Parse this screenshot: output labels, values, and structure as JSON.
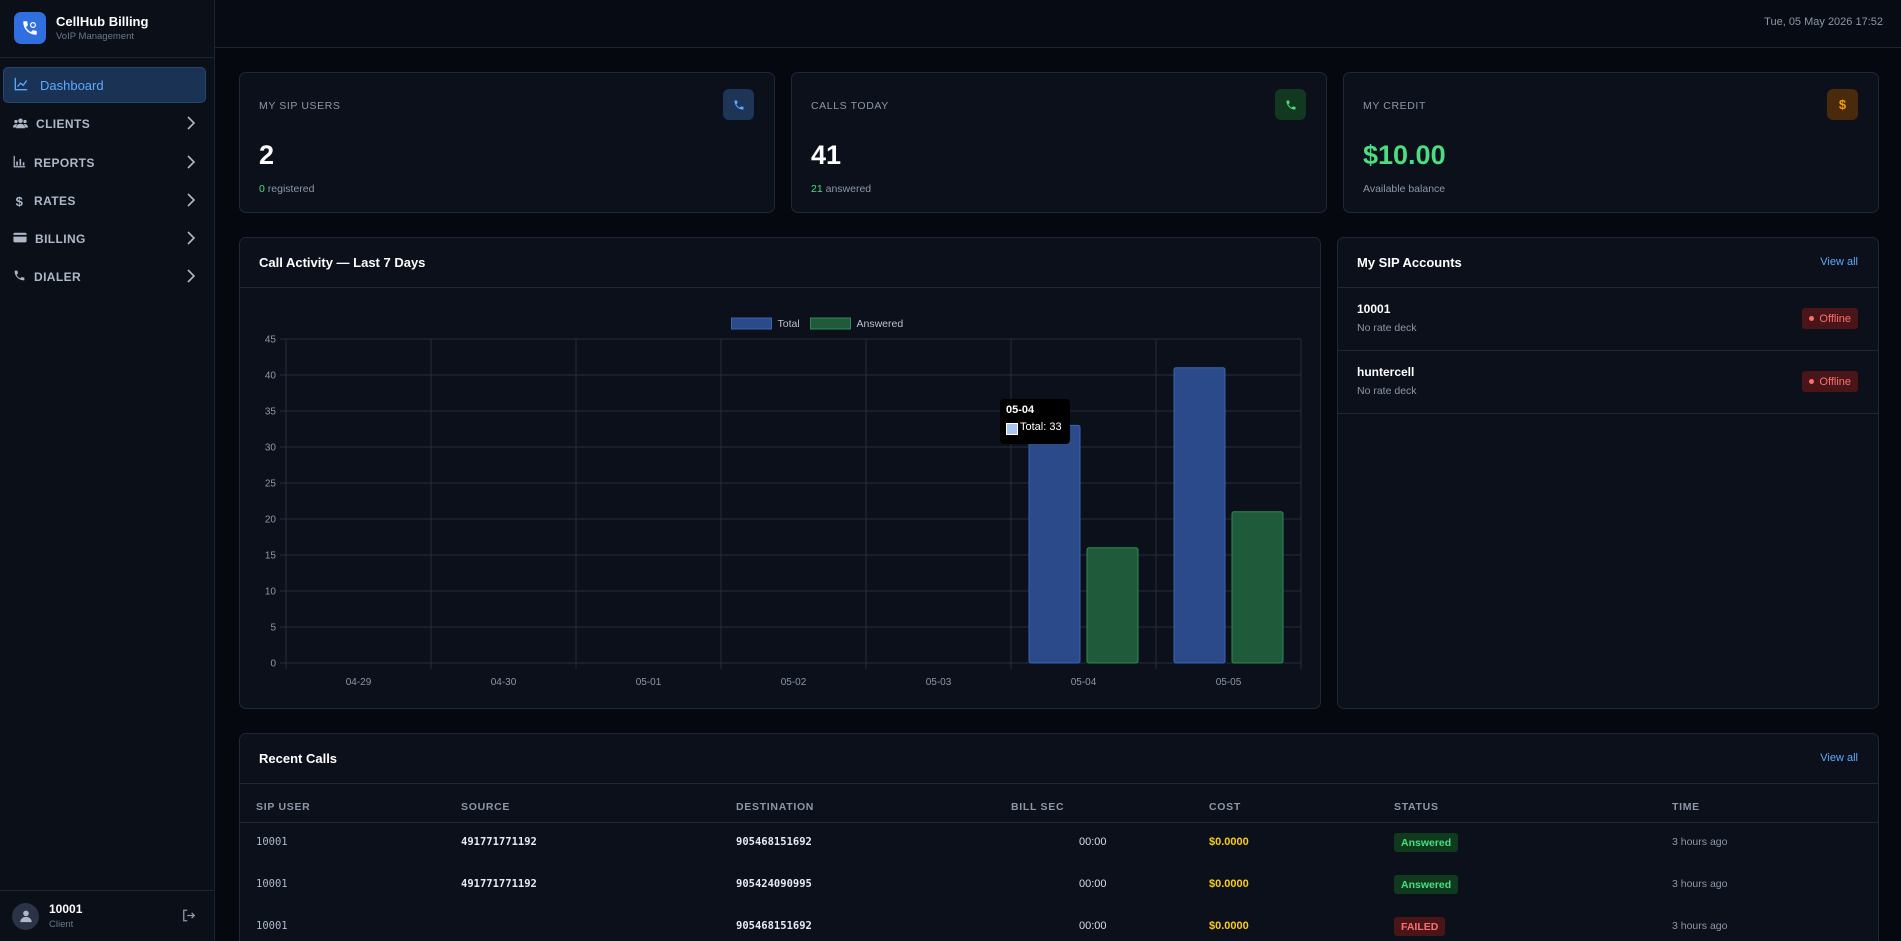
{
  "brand": {
    "title": "CellHub Billing",
    "subtitle": "VoIP Management"
  },
  "sidebar": {
    "items": [
      {
        "label": "Dashboard",
        "icon": "chart-line-icon",
        "active": true
      },
      {
        "label": "CLIENTS",
        "icon": "users-icon"
      },
      {
        "label": "REPORTS",
        "icon": "bar-chart-icon"
      },
      {
        "label": "RATES",
        "icon": "dollar-icon"
      },
      {
        "label": "BILLING",
        "icon": "credit-card-icon"
      },
      {
        "label": "DIALER",
        "icon": "phone-icon"
      }
    ],
    "user": {
      "name": "10001",
      "role": "Client"
    }
  },
  "topbar": {
    "datetime": "Tue, 05 May 2026 17:52"
  },
  "stats": {
    "sip_users": {
      "label": "MY SIP USERS",
      "value": "2",
      "sub_count": "0",
      "sub_text": "registered",
      "accent": "#5ea8ff"
    },
    "calls_today": {
      "label": "CALLS TODAY",
      "value": "41",
      "sub_count": "21",
      "sub_text": "answered",
      "accent": "#4ade80"
    },
    "credit": {
      "label": "MY CREDIT",
      "value": "$10.00",
      "sub_text": "Available balance",
      "accent": "#f59e0b"
    }
  },
  "activity": {
    "title": "Call Activity — Last 7 Days",
    "tooltip": {
      "title": "05-04",
      "body": "Total: 33"
    }
  },
  "chart_data": {
    "type": "bar",
    "categories": [
      "04-29",
      "04-30",
      "05-01",
      "05-02",
      "05-03",
      "05-04",
      "05-05"
    ],
    "series": [
      {
        "name": "Total",
        "values": [
          0,
          0,
          0,
          0,
          0,
          33,
          41
        ],
        "color": "#2a4a8a"
      },
      {
        "name": "Answered",
        "values": [
          0,
          0,
          0,
          0,
          0,
          16,
          21
        ],
        "color": "#1f5a3a"
      }
    ],
    "ylim": [
      0,
      45
    ],
    "yticks": [
      0,
      5,
      10,
      15,
      20,
      25,
      30,
      35,
      40,
      45
    ],
    "legend": "top-center",
    "grid": true
  },
  "sip_accounts": {
    "title": "My SIP Accounts",
    "view_all": "View all",
    "items": [
      {
        "name": "10001",
        "deck": "No rate deck",
        "status": "Offline"
      },
      {
        "name": "huntercell",
        "deck": "No rate deck",
        "status": "Offline"
      }
    ]
  },
  "recent_calls": {
    "title": "Recent Calls",
    "view_all": "View all",
    "columns": [
      "SIP USER",
      "SOURCE",
      "DESTINATION",
      "BILL SEC",
      "COST",
      "STATUS",
      "TIME"
    ],
    "rows": [
      {
        "sip_user": "10001",
        "source": "491771771192",
        "destination": "905468151692",
        "bill_sec": "00:00",
        "cost": "$0.0000",
        "status": "Answered",
        "time": "3 hours ago"
      },
      {
        "sip_user": "10001",
        "source": "491771771192",
        "destination": "905424090995",
        "bill_sec": "00:00",
        "cost": "$0.0000",
        "status": "Answered",
        "time": "3 hours ago"
      },
      {
        "sip_user": "10001",
        "source": "",
        "destination": "905468151692",
        "bill_sec": "00:00",
        "cost": "$0.0000",
        "status": "FAILED",
        "time": "3 hours ago"
      }
    ]
  }
}
